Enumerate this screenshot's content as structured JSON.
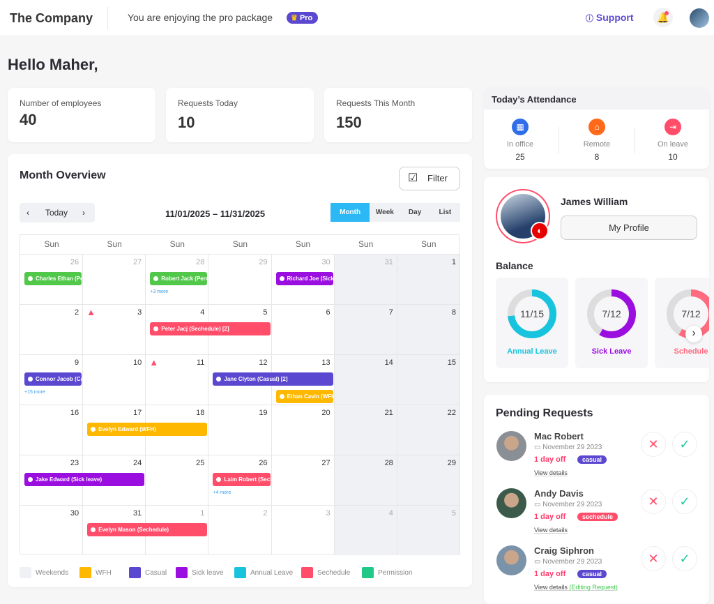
{
  "header": {
    "brand": "The Company",
    "promo": "You are enjoying the pro package",
    "pro_badge": "Pro",
    "support": "Support",
    "icons": [
      "crown-icon",
      "help-circle-icon",
      "bell-icon",
      "avatar"
    ]
  },
  "greeting": "Hello Maher,",
  "stats": [
    {
      "label": "Number of employees",
      "value": "40"
    },
    {
      "label": "Requests Today",
      "value": "10"
    },
    {
      "label": "Requests This Month",
      "value": "150"
    }
  ],
  "month": {
    "title": "Month Overview",
    "filter": "Filter",
    "today": "Today",
    "range": "11/01/2025 – 11/31/2025",
    "views": [
      "Month",
      "Week",
      "Day",
      "List"
    ],
    "active_view": "Month",
    "day_names": [
      "Sun",
      "Sun",
      "Sun",
      "Sun",
      "Sun",
      "Sun",
      "Sun"
    ],
    "weeks": [
      [
        "26",
        "27",
        "28",
        "29",
        "30",
        "31",
        "1"
      ],
      [
        "2",
        "3",
        "4",
        "5",
        "6",
        "7",
        "8"
      ],
      [
        "9",
        "10",
        "11",
        "12",
        "13",
        "14",
        "15"
      ],
      [
        "16",
        "17",
        "18",
        "19",
        "20",
        "21",
        "22"
      ],
      [
        "23",
        "24",
        "25",
        "26",
        "27",
        "28",
        "29"
      ],
      [
        "30",
        "31",
        "1",
        "2",
        "3",
        "4",
        "5"
      ]
    ],
    "events": [
      {
        "label": "Charles Ethan (Permission)",
        "type": "permission",
        "week": 0,
        "day": 0,
        "span": 1,
        "lane": 0
      },
      {
        "label": "Robert Jack (Permission)",
        "type": "permission",
        "week": 0,
        "day": 2,
        "span": 1,
        "lane": 0
      },
      {
        "label": "Richard Joe (Sick leave)",
        "type": "sick",
        "week": 0,
        "day": 4,
        "span": 1,
        "lane": 0
      },
      {
        "label": "Peter Jacj (Sechedule) [2]",
        "type": "schedule",
        "week": 1,
        "day": 2,
        "span": 2,
        "lane": 0
      },
      {
        "label": "Connor Jacob (Casual)",
        "type": "casual",
        "week": 2,
        "day": 0,
        "span": 1,
        "lane": 0
      },
      {
        "label": "Jane Clyton (Casual) [2]",
        "type": "casual",
        "week": 2,
        "day": 3,
        "span": 2,
        "lane": 0
      },
      {
        "label": "Ethan Cavin (WFH)",
        "type": "wfh",
        "week": 2,
        "day": 4,
        "span": 1,
        "lane": 1
      },
      {
        "label": "Evelyn Edward (WFH)",
        "type": "wfh",
        "week": 3,
        "day": 1,
        "span": 2,
        "lane": 0
      },
      {
        "label": "Jake Edward (Sick leave)",
        "type": "sick",
        "week": 4,
        "day": 0,
        "span": 2,
        "lane": 0
      },
      {
        "label": "Laim Robert (Sechedule)",
        "type": "schedule",
        "week": 4,
        "day": 3,
        "span": 1,
        "lane": 0
      },
      {
        "label": "Evelyn Mason (Sechedule)",
        "type": "schedule",
        "week": 5,
        "day": 1,
        "span": 2,
        "lane": 0
      }
    ],
    "more": [
      {
        "label": "+3 more",
        "week": 0,
        "day": 2
      },
      {
        "label": "+15 more",
        "week": 2,
        "day": 0
      },
      {
        "label": "+4 more",
        "week": 4,
        "day": 3
      }
    ],
    "warnings": [
      {
        "week": 1,
        "day": 1
      },
      {
        "week": 2,
        "day": 2
      }
    ],
    "legend": [
      {
        "label": "Weekends",
        "color": "#f0f1f5"
      },
      {
        "label": "WFH",
        "color": "#ffb800"
      },
      {
        "label": "Casual",
        "color": "#5b48d0"
      },
      {
        "label": "Sick leave",
        "color": "#9b0ee0"
      },
      {
        "label": "Annual Leave",
        "color": "#18c3de"
      },
      {
        "label": "Sechedule",
        "color": "#ff4d6a"
      },
      {
        "label": "Permission",
        "color": "#20c987"
      }
    ]
  },
  "colors": {
    "permission": "#52c84a",
    "sick": "#9b0ee0",
    "schedule": "#ff4d6a",
    "casual": "#5b48d0",
    "wfh": "#ffb800"
  },
  "attendance": {
    "title": "Today’s Attendance",
    "items": [
      {
        "label": "In office",
        "value": "25",
        "color": "#2f6ee8",
        "icon": "building-icon"
      },
      {
        "label": "Remote",
        "value": "8",
        "color": "#ff6a1a",
        "icon": "home-icon"
      },
      {
        "label": "On leave",
        "value": "10",
        "color": "#ff4d6a",
        "icon": "exit-icon"
      }
    ]
  },
  "profile": {
    "name": "James William",
    "button": "My Profile",
    "balance_title": "Balance",
    "balances": [
      {
        "label": "Annual Leave",
        "value": "11/15",
        "used": 11,
        "total": 15,
        "color": "#18c3de"
      },
      {
        "label": "Sick Leave",
        "value": "7/12",
        "used": 7,
        "total": 12,
        "color": "#9b0ee0"
      },
      {
        "label": "Schedule",
        "value": "7/12",
        "used": 7,
        "total": 12,
        "color": "#ff6a7e"
      }
    ]
  },
  "pending": {
    "title": "Pending Requests",
    "items": [
      {
        "name": "Mac Robert",
        "date": "November 29 2023",
        "off": "1 day off",
        "tag": "casual",
        "tag_color": "#5b48d0",
        "details": "View details",
        "note": ""
      },
      {
        "name": "Andy Davis",
        "date": "November 29 2023",
        "off": "1 day off",
        "tag": "sechedule",
        "tag_color": "#ff4d6a",
        "details": "View details",
        "note": ""
      },
      {
        "name": "Craig Siphron",
        "date": "November 29 2023",
        "off": "1 day off",
        "tag": "casual",
        "tag_color": "#5b48d0",
        "details": "View details",
        "note": "(Editing Request)"
      }
    ]
  }
}
